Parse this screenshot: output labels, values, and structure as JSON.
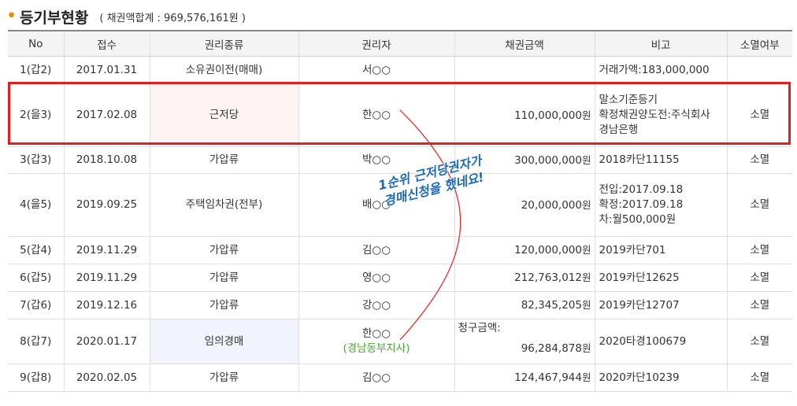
{
  "section": {
    "title": "등기부현황",
    "subtitle": "( 채권액합계 : 969,576,161원 )"
  },
  "table": {
    "headers": [
      "No",
      "접수",
      "권리종류",
      "권리자",
      "채권금액",
      "비고",
      "소멸여부"
    ],
    "rows": [
      {
        "no": "1(갑2)",
        "date": "2017.01.31",
        "type": "소유권이전(매매)",
        "holder": "서○○",
        "holder_sub": "",
        "amount": "",
        "amount_label": "",
        "note": [
          "거래가액:183,000,000"
        ],
        "status": ""
      },
      {
        "no": "2(을3)",
        "date": "2017.02.08",
        "type": "근저당",
        "holder": "한○○",
        "holder_sub": "",
        "amount": "110,000,000",
        "amount_label": "",
        "note": [
          "말소기준등기",
          "확정채권양도전:주식회사",
          "경남은행"
        ],
        "status": "소멸"
      },
      {
        "no": "3(갑3)",
        "date": "2018.10.08",
        "type": "가압류",
        "holder": "박○○",
        "holder_sub": "",
        "amount": "300,000,000",
        "amount_label": "",
        "note": [
          "2018카단11155"
        ],
        "status": "소멸"
      },
      {
        "no": "4(을5)",
        "date": "2019.09.25",
        "type": "주택임차권(전부)",
        "holder": "배○○",
        "holder_sub": "",
        "amount": "20,000,000",
        "amount_label": "",
        "note": [
          "전입:2017.09.18",
          "확정:2017.09.18",
          "차:월500,000원"
        ],
        "status": "소멸"
      },
      {
        "no": "5(갑4)",
        "date": "2019.11.29",
        "type": "가압류",
        "holder": "김○○",
        "holder_sub": "",
        "amount": "120,000,000",
        "amount_label": "",
        "note": [
          "2019카단701"
        ],
        "status": "소멸"
      },
      {
        "no": "6(갑5)",
        "date": "2019.11.29",
        "type": "가압류",
        "holder": "영○○",
        "holder_sub": "",
        "amount": "212,763,012",
        "amount_label": "",
        "note": [
          "2019카단12625"
        ],
        "status": "소멸"
      },
      {
        "no": "7(갑6)",
        "date": "2019.12.16",
        "type": "가압류",
        "holder": "강○○",
        "holder_sub": "",
        "amount": "82,345,205",
        "amount_label": "",
        "note": [
          "2019카단12707"
        ],
        "status": "소멸"
      },
      {
        "no": "8(갑7)",
        "date": "2020.01.17",
        "type": "임의경매",
        "holder": "한○○",
        "holder_sub": "(경남동부지사)",
        "amount": "96,284,878",
        "amount_label": "청구금액:",
        "note": [
          "2020타경100679"
        ],
        "status": "소멸"
      },
      {
        "no": "9(갑8)",
        "date": "2020.02.05",
        "type": "가압류",
        "holder": "김○○",
        "holder_sub": "",
        "amount": "124,467,944",
        "amount_label": "",
        "note": [
          "2020카단10239"
        ],
        "status": "소멸"
      }
    ],
    "currency_unit": "원"
  },
  "annotation": {
    "line1": "1순위 근저당권자가",
    "line2": "경매신청을 했네요!",
    "color": "#1f6bb5"
  },
  "colors": {
    "accent_bullet": "#f08a00",
    "highlight_box": "#e02020",
    "arrow": "#d93030",
    "sub_text": "#4ea339"
  }
}
